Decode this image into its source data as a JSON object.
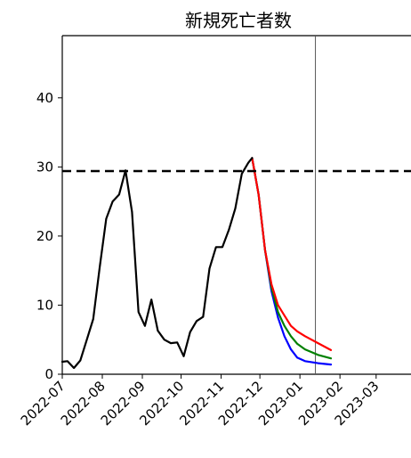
{
  "chart_data": {
    "type": "line",
    "title": "新規死亡者数",
    "xlabel": "",
    "ylabel": "",
    "ylim": [
      0,
      49
    ],
    "yticks": [
      0,
      10,
      20,
      30,
      40
    ],
    "x_tick_labels": [
      "2022-07",
      "2022-08",
      "2022-09",
      "2022-10",
      "2022-11",
      "2022-12",
      "2023-01",
      "2023-02",
      "2023-03"
    ],
    "x_tick_dates": [
      "2022-07-01",
      "2022-08-01",
      "2022-09-01",
      "2022-10-01",
      "2022-11-01",
      "2022-12-01",
      "2023-01-01",
      "2023-02-01",
      "2023-03-01"
    ],
    "xlim": [
      "2022-07-01",
      "2023-03-28"
    ],
    "reference_line": {
      "y": 29.4,
      "style": "dashed",
      "color": "#000000"
    },
    "vertical_line": {
      "x": "2023-01-13",
      "color": "#555555"
    },
    "grid": false,
    "series": [
      {
        "color": "#000000",
        "points": [
          [
            "2022-07-01",
            1.8
          ],
          [
            "2022-07-05",
            1.9
          ],
          [
            "2022-07-10",
            0.9
          ],
          [
            "2022-07-15",
            2.0
          ],
          [
            "2022-07-20",
            5.0
          ],
          [
            "2022-07-25",
            8.0
          ],
          [
            "2022-07-30",
            15.5
          ],
          [
            "2022-08-04",
            22.5
          ],
          [
            "2022-08-09",
            25.0
          ],
          [
            "2022-08-14",
            26.0
          ],
          [
            "2022-08-19",
            29.5
          ],
          [
            "2022-08-24",
            23.5
          ],
          [
            "2022-08-29",
            9.0
          ],
          [
            "2022-09-03",
            7.0
          ],
          [
            "2022-09-08",
            10.8
          ],
          [
            "2022-09-13",
            6.3
          ],
          [
            "2022-09-18",
            5.0
          ],
          [
            "2022-09-23",
            4.5
          ],
          [
            "2022-09-28",
            4.6
          ],
          [
            "2022-10-03",
            2.6
          ],
          [
            "2022-10-08",
            6.1
          ],
          [
            "2022-10-13",
            7.7
          ],
          [
            "2022-10-18",
            8.3
          ],
          [
            "2022-10-23",
            15.3
          ],
          [
            "2022-10-28",
            18.4
          ],
          [
            "2022-11-02",
            18.4
          ],
          [
            "2022-11-07",
            20.9
          ],
          [
            "2022-11-12",
            24.0
          ],
          [
            "2022-11-17",
            29.0
          ],
          [
            "2022-11-22",
            30.6
          ],
          [
            "2022-11-25",
            31.3
          ]
        ]
      },
      {
        "color": "#ff0000",
        "points": [
          [
            "2022-11-25",
            31.3
          ],
          [
            "2022-11-30",
            26.0
          ],
          [
            "2022-12-05",
            18.0
          ],
          [
            "2022-12-10",
            13.0
          ],
          [
            "2022-12-15",
            10.0
          ],
          [
            "2022-12-20",
            8.5
          ],
          [
            "2022-12-25",
            7.0
          ],
          [
            "2022-12-30",
            6.2
          ],
          [
            "2023-01-05",
            5.5
          ],
          [
            "2023-01-15",
            4.5
          ],
          [
            "2023-01-25",
            3.5
          ]
        ]
      },
      {
        "color": "#008000",
        "points": [
          [
            "2022-11-25",
            31.3
          ],
          [
            "2022-11-30",
            26.0
          ],
          [
            "2022-12-05",
            18.0
          ],
          [
            "2022-12-10",
            12.5
          ],
          [
            "2022-12-15",
            9.0
          ],
          [
            "2022-12-20",
            7.0
          ],
          [
            "2022-12-25",
            5.5
          ],
          [
            "2022-12-30",
            4.4
          ],
          [
            "2023-01-05",
            3.6
          ],
          [
            "2023-01-15",
            2.8
          ],
          [
            "2023-01-25",
            2.3
          ]
        ]
      },
      {
        "color": "#0000ff",
        "points": [
          [
            "2022-11-25",
            31.3
          ],
          [
            "2022-11-30",
            26.0
          ],
          [
            "2022-12-05",
            18.0
          ],
          [
            "2022-12-10",
            12.0
          ],
          [
            "2022-12-15",
            8.2
          ],
          [
            "2022-12-20",
            5.5
          ],
          [
            "2022-12-25",
            3.6
          ],
          [
            "2022-12-30",
            2.4
          ],
          [
            "2023-01-05",
            1.9
          ],
          [
            "2023-01-15",
            1.6
          ],
          [
            "2023-01-25",
            1.4
          ]
        ]
      }
    ]
  }
}
